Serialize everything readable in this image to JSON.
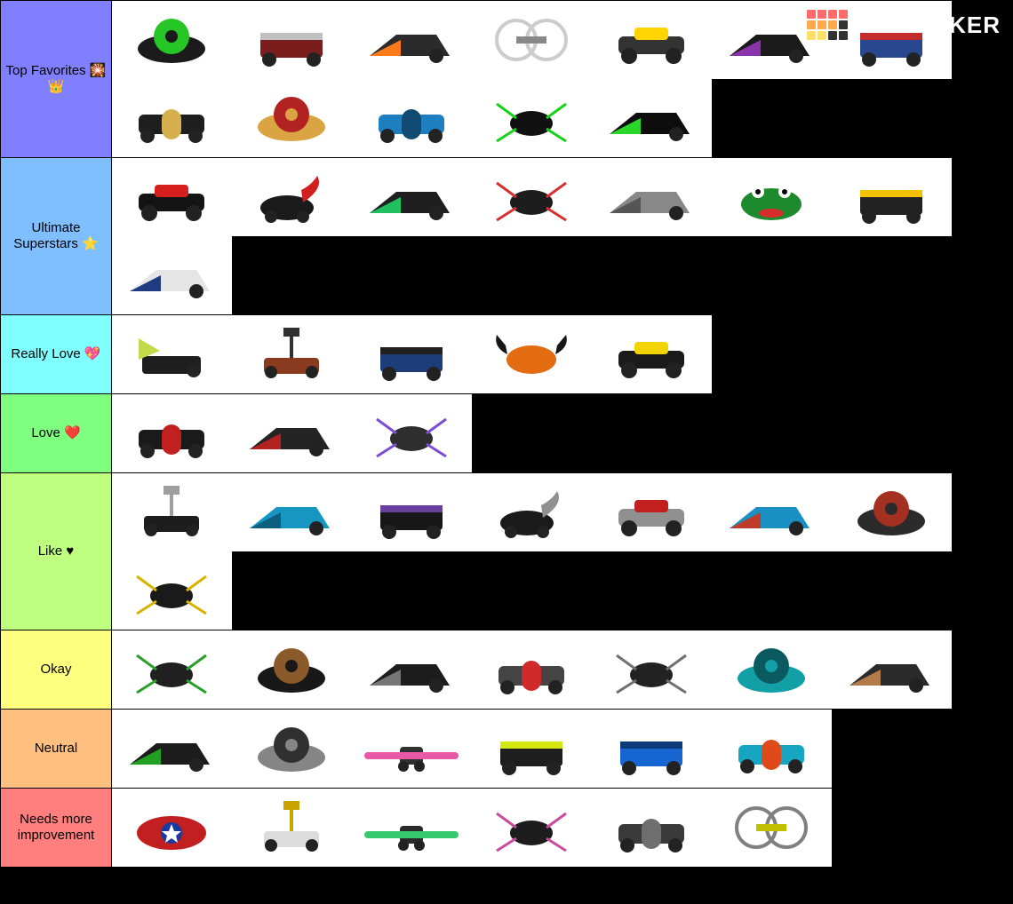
{
  "brand": {
    "text": "TIERMAKER",
    "grid_colors": [
      "#ff6b6b",
      "#ff6b6b",
      "#ff6b6b",
      "#ff6b6b",
      "#ffa94d",
      "#ffa94d",
      "#ffa94d",
      "#333333",
      "#ffe066",
      "#ffe066",
      "#333333",
      "#333333"
    ]
  },
  "tile_size": {
    "w": 135,
    "h": 88
  },
  "tiers": [
    {
      "label": "Top Favorites 🎇👑",
      "bg": "#7f7fff",
      "items": [
        {
          "body": "#1b1b1b",
          "accent": "#26c626",
          "shape": "disc"
        },
        {
          "body": "#7a1d1d",
          "accent": "#c0c0c0",
          "shape": "box"
        },
        {
          "body": "#2b2b2b",
          "accent": "#ff7b1a",
          "shape": "wedge"
        },
        {
          "body": "#cccccc",
          "accent": "#888888",
          "shape": "spinner"
        },
        {
          "body": "#333333",
          "accent": "#ffd400",
          "shape": "car"
        },
        {
          "body": "#1a1a1a",
          "accent": "#8a33aa",
          "shape": "wedge"
        },
        {
          "body": "#29478f",
          "accent": "#c42c2c",
          "shape": "box"
        },
        {
          "body": "#1e1e1e",
          "accent": "#d6b04e",
          "shape": "drum"
        },
        {
          "body": "#d9a441",
          "accent": "#b22222",
          "shape": "disc"
        },
        {
          "body": "#1d7fbf",
          "accent": "#114a73",
          "shape": "drum"
        },
        {
          "body": "#111111",
          "accent": "#18d018",
          "shape": "spider"
        },
        {
          "body": "#0d0d0d",
          "accent": "#29d629",
          "shape": "wedge"
        }
      ]
    },
    {
      "label": "Ultimate Superstars ⭐",
      "bg": "#7fbfff",
      "items": [
        {
          "body": "#141414",
          "accent": "#d62020",
          "shape": "car"
        },
        {
          "body": "#1a1a1a",
          "accent": "#d11f1f",
          "shape": "scorp"
        },
        {
          "body": "#1f1f1f",
          "accent": "#21c060",
          "shape": "wedge"
        },
        {
          "body": "#1d1d1d",
          "accent": "#d63030",
          "shape": "spider"
        },
        {
          "body": "#888888",
          "accent": "#555555",
          "shape": "wedge"
        },
        {
          "body": "#1e8a2e",
          "accent": "#d62c2c",
          "shape": "frog"
        },
        {
          "body": "#222222",
          "accent": "#f2c200",
          "shape": "box"
        },
        {
          "body": "#e5e5e5",
          "accent": "#223a7f",
          "shape": "wedge"
        }
      ]
    },
    {
      "label": "Really Love 💖",
      "bg": "#7fffff",
      "items": [
        {
          "body": "#1e1e1e",
          "accent": "#c2d94a",
          "shape": "axe"
        },
        {
          "body": "#8a3a1e",
          "accent": "#303030",
          "shape": "hammer"
        },
        {
          "body": "#1c3d7a",
          "accent": "#202020",
          "shape": "box"
        },
        {
          "body": "#e36b12",
          "accent": "#161616",
          "shape": "crab"
        },
        {
          "body": "#1a1a1a",
          "accent": "#f2d400",
          "shape": "car"
        }
      ]
    },
    {
      "label": "Love ❤️",
      "bg": "#7fff7f",
      "items": [
        {
          "body": "#1a1a1a",
          "accent": "#c21f1f",
          "shape": "drum"
        },
        {
          "body": "#242424",
          "accent": "#b22222",
          "shape": "wedge"
        },
        {
          "body": "#2e2e2e",
          "accent": "#7a4fd1",
          "shape": "spider"
        }
      ]
    },
    {
      "label": "Like ♥",
      "bg": "#bfff7f",
      "items": [
        {
          "body": "#1d1d1d",
          "accent": "#9e9e9e",
          "shape": "hammer"
        },
        {
          "body": "#1697c2",
          "accent": "#0d5f80",
          "shape": "wedge"
        },
        {
          "body": "#171717",
          "accent": "#6b3fa0",
          "shape": "box"
        },
        {
          "body": "#1a1a1a",
          "accent": "#909090",
          "shape": "scorp"
        },
        {
          "body": "#909090",
          "accent": "#c21f1f",
          "shape": "car"
        },
        {
          "body": "#1a90c2",
          "accent": "#c03a2a",
          "shape": "wedge"
        },
        {
          "body": "#2b2b2b",
          "accent": "#a33020",
          "shape": "disc"
        },
        {
          "body": "#1a1a1a",
          "accent": "#d6b300",
          "shape": "spider"
        }
      ]
    },
    {
      "label": "Okay",
      "bg": "#ffff7f",
      "items": [
        {
          "body": "#202020",
          "accent": "#2aa02a",
          "shape": "spider"
        },
        {
          "body": "#181818",
          "accent": "#8a5a2a",
          "shape": "disc"
        },
        {
          "body": "#1c1c1c",
          "accent": "#757575",
          "shape": "wedge"
        },
        {
          "body": "#444444",
          "accent": "#d12a2a",
          "shape": "drum"
        },
        {
          "body": "#222222",
          "accent": "#707070",
          "shape": "spider"
        },
        {
          "body": "#12a0a6",
          "accent": "#0a5a5f",
          "shape": "disc"
        },
        {
          "body": "#2a2a2a",
          "accent": "#b37a4a",
          "shape": "wedge"
        }
      ]
    },
    {
      "label": "Neutral",
      "bg": "#ffbf7f",
      "items": [
        {
          "body": "#1c1c1c",
          "accent": "#22a022",
          "shape": "wedge"
        },
        {
          "body": "#858585",
          "accent": "#303030",
          "shape": "disc"
        },
        {
          "body": "#303030",
          "accent": "#e858a8",
          "shape": "bar"
        },
        {
          "body": "#1e1e1e",
          "accent": "#d6e813",
          "shape": "box"
        },
        {
          "body": "#1665d1",
          "accent": "#0d3a7a",
          "shape": "box"
        },
        {
          "body": "#16a6c2",
          "accent": "#e04a1a",
          "shape": "drum"
        }
      ]
    },
    {
      "label": "Needs more improvement",
      "bg": "#ff7f7f",
      "items": [
        {
          "body": "#c22020",
          "accent": "#1a3aa0",
          "shape": "shell"
        },
        {
          "body": "#dcdcdc",
          "accent": "#c9a400",
          "shape": "hammer"
        },
        {
          "body": "#2a2a2a",
          "accent": "#36c96e",
          "shape": "bar"
        },
        {
          "body": "#1d1d1d",
          "accent": "#c94a9e",
          "shape": "spider"
        },
        {
          "body": "#3a3a3a",
          "accent": "#6e6e6e",
          "shape": "drum"
        },
        {
          "body": "#808080",
          "accent": "#c0c000",
          "shape": "spinner"
        }
      ]
    }
  ]
}
